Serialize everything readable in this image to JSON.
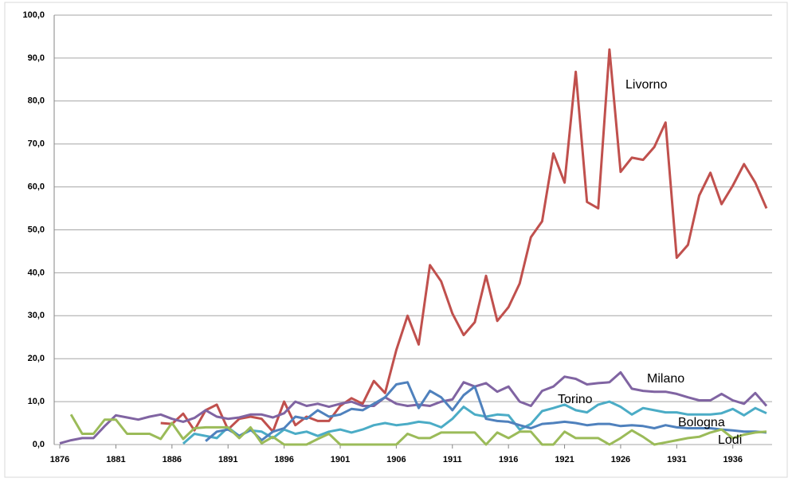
{
  "chart_data": {
    "type": "line",
    "x": [
      1876,
      1877,
      1878,
      1879,
      1880,
      1881,
      1882,
      1883,
      1884,
      1885,
      1886,
      1887,
      1888,
      1889,
      1890,
      1891,
      1892,
      1893,
      1894,
      1895,
      1896,
      1897,
      1898,
      1899,
      1900,
      1901,
      1902,
      1903,
      1904,
      1905,
      1906,
      1907,
      1908,
      1909,
      1910,
      1911,
      1912,
      1913,
      1914,
      1915,
      1916,
      1917,
      1918,
      1919,
      1920,
      1921,
      1922,
      1923,
      1924,
      1925,
      1926,
      1927,
      1928,
      1929,
      1930,
      1931,
      1932,
      1933,
      1934,
      1935,
      1936,
      1937,
      1938,
      1939
    ],
    "xlim": [
      1875.5,
      1939.5
    ],
    "xticks": [
      1876,
      1881,
      1886,
      1891,
      1896,
      1901,
      1906,
      1911,
      1916,
      1921,
      1926,
      1931,
      1936
    ],
    "ylim": [
      0,
      100
    ],
    "yticks": [
      {
        "value": 0,
        "label": "0,0"
      },
      {
        "value": 10,
        "label": "10,0"
      },
      {
        "value": 20,
        "label": "20,0"
      },
      {
        "value": 30,
        "label": "30,0"
      },
      {
        "value": 40,
        "label": "40,0"
      },
      {
        "value": 50,
        "label": "50,0"
      },
      {
        "value": 60,
        "label": "60,0"
      },
      {
        "value": 70,
        "label": "70,0"
      },
      {
        "value": 80,
        "label": "80,0"
      },
      {
        "value": 90,
        "label": "90,0"
      },
      {
        "value": 100,
        "label": "100,0"
      }
    ],
    "grid": true,
    "series": [
      {
        "name": "Livorno",
        "color": "#c0504d",
        "values": [
          null,
          null,
          null,
          null,
          null,
          null,
          null,
          null,
          null,
          5.0,
          4.8,
          7.2,
          3.3,
          8.0,
          9.3,
          3.5,
          6.0,
          6.5,
          6.0,
          3.0,
          10.0,
          4.5,
          6.5,
          5.5,
          5.5,
          9.0,
          10.8,
          9.5,
          14.8,
          12.0,
          22.0,
          30.0,
          23.3,
          41.8,
          38.0,
          30.5,
          25.5,
          28.5,
          39.3,
          28.8,
          32.0,
          37.5,
          48.3,
          52.0,
          67.8,
          61.0,
          86.8,
          56.5,
          55.0,
          92.0,
          63.5,
          66.8,
          66.3,
          69.3,
          75.0,
          43.5,
          46.5,
          58.0,
          63.3,
          56.0,
          60.3,
          65.3,
          61.0,
          55.0
        ]
      },
      {
        "name": "Milano",
        "color": "#8064a2",
        "values": [
          0.3,
          1.0,
          1.5,
          1.5,
          4.3,
          6.8,
          6.3,
          5.8,
          6.5,
          7.0,
          6.0,
          5.3,
          6.2,
          8.0,
          6.5,
          6.0,
          6.3,
          7.0,
          7.0,
          6.3,
          7.3,
          10.0,
          9.0,
          9.5,
          8.8,
          9.5,
          10.0,
          9.0,
          9.0,
          11.0,
          9.5,
          9.0,
          9.3,
          9.0,
          10.0,
          10.5,
          14.5,
          13.5,
          14.3,
          12.3,
          13.5,
          10.0,
          9.0,
          12.5,
          13.5,
          15.8,
          15.3,
          14.0,
          14.3,
          14.5,
          16.8,
          13.0,
          12.5,
          12.3,
          12.3,
          11.8,
          11.0,
          10.3,
          10.3,
          11.8,
          10.3,
          9.5,
          12.0,
          9.0
        ]
      },
      {
        "name": "Torino",
        "color": "#4bacc6",
        "values": [
          null,
          null,
          null,
          null,
          null,
          null,
          null,
          null,
          null,
          null,
          null,
          0.2,
          2.5,
          2.0,
          1.5,
          4.0,
          2.0,
          3.3,
          3.0,
          1.5,
          3.5,
          2.5,
          3.0,
          2.0,
          3.0,
          3.5,
          2.8,
          3.5,
          4.5,
          5.0,
          4.5,
          4.8,
          5.3,
          5.0,
          4.0,
          6.0,
          8.8,
          7.0,
          6.5,
          7.0,
          6.8,
          3.5,
          4.8,
          7.8,
          8.5,
          9.3,
          8.0,
          7.5,
          9.3,
          10.0,
          8.8,
          7.0,
          8.5,
          8.0,
          7.5,
          7.5,
          7.0,
          7.0,
          7.0,
          7.3,
          8.3,
          6.8,
          8.5,
          7.3
        ]
      },
      {
        "name": "Bologna",
        "color": "#4f81bd",
        "values": [
          null,
          null,
          null,
          null,
          null,
          null,
          null,
          null,
          null,
          null,
          null,
          null,
          null,
          0.8,
          3.0,
          3.5,
          2.0,
          3.5,
          1.0,
          3.0,
          3.8,
          6.5,
          6.0,
          8.0,
          6.5,
          7.0,
          8.3,
          8.0,
          9.5,
          11.0,
          14.0,
          14.5,
          8.5,
          12.5,
          11.0,
          8.0,
          11.5,
          13.5,
          6.0,
          5.5,
          5.3,
          4.5,
          3.8,
          4.8,
          5.0,
          5.3,
          5.0,
          4.5,
          4.8,
          4.8,
          4.3,
          4.5,
          4.3,
          3.8,
          4.5,
          4.0,
          3.8,
          3.8,
          3.8,
          3.5,
          3.3,
          3.0,
          3.0,
          2.8
        ]
      },
      {
        "name": "Lodi",
        "color": "#9bbb59",
        "values": [
          null,
          7.0,
          2.5,
          2.5,
          5.8,
          5.8,
          2.5,
          2.5,
          2.5,
          1.3,
          5.0,
          1.3,
          3.8,
          4.0,
          4.0,
          4.0,
          1.5,
          4.0,
          0.3,
          1.8,
          0.0,
          0.0,
          0.0,
          1.3,
          2.5,
          0.0,
          0.0,
          0.0,
          0.0,
          0.0,
          0.0,
          2.5,
          1.5,
          1.5,
          2.8,
          2.8,
          2.8,
          2.8,
          0.0,
          2.8,
          1.5,
          3.0,
          3.0,
          0.0,
          0.0,
          3.0,
          1.5,
          1.5,
          1.5,
          0.0,
          1.5,
          3.3,
          1.8,
          0.0,
          0.5,
          1.0,
          1.5,
          1.8,
          2.8,
          3.5,
          1.5,
          2.3,
          2.8,
          3.0
        ]
      }
    ]
  }
}
